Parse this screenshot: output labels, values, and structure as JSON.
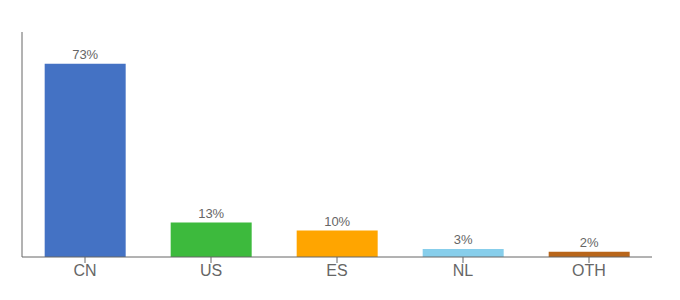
{
  "chart_data": {
    "type": "bar",
    "categories": [
      "CN",
      "US",
      "ES",
      "NL",
      "OTH"
    ],
    "values": [
      73,
      13,
      10,
      3,
      2
    ],
    "value_labels": [
      "73%",
      "13%",
      "10%",
      "3%",
      "2%"
    ],
    "colors": [
      "#4472c4",
      "#3dba3d",
      "#ffa500",
      "#87ceeb",
      "#b8651a"
    ],
    "ylim": [
      0,
      85
    ],
    "data_labels": true,
    "tick_labels": "x",
    "grid": false
  }
}
